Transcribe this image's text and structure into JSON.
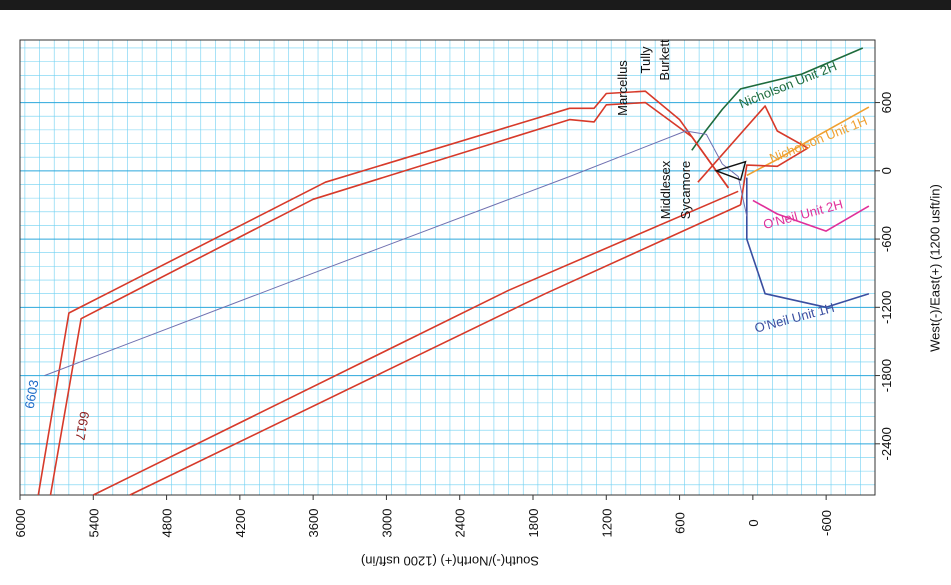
{
  "chart_data": {
    "type": "line",
    "title": "",
    "xlabel": "South(-)/North(+) (1200 usft/in)",
    "ylabel": "West(-)/East(+) (1200 usft/in)",
    "x_reversed": true,
    "xlim": [
      6000,
      -1000
    ],
    "ylim": [
      -2850,
      1150
    ],
    "x_ticks": [
      6000,
      5400,
      4800,
      4200,
      3600,
      3000,
      2400,
      1800,
      1200,
      600,
      0,
      -600
    ],
    "y_ticks": [
      600,
      0,
      -600,
      -1200,
      -1800,
      -2400
    ],
    "grid": true,
    "series": [
      {
        "name": "Nicholson Unit 2H",
        "color": "#1e6b3c",
        "points": [
          [
            500,
            180
          ],
          [
            380,
            360
          ],
          [
            250,
            540
          ],
          [
            100,
            720
          ],
          [
            -400,
            850
          ],
          [
            -900,
            1080
          ]
        ]
      },
      {
        "name": "Nicholson Unit 1H",
        "color": "#f0a030",
        "points": [
          [
            50,
            -40
          ],
          [
            -200,
            100
          ],
          [
            -450,
            260
          ],
          [
            -950,
            560
          ]
        ]
      },
      {
        "name": "O'Neil Unit 2H",
        "color": "#e0309a",
        "points": [
          [
            0,
            -260
          ],
          [
            -200,
            -380
          ],
          [
            -600,
            -530
          ],
          [
            -950,
            -310
          ]
        ]
      },
      {
        "name": "O'Neil Unit 1H",
        "color": "#3a4ea0",
        "points": [
          [
            50,
            -60
          ],
          [
            50,
            -600
          ],
          [
            -100,
            -1080
          ],
          [
            -600,
            -1200
          ],
          [
            -950,
            -1080
          ]
        ]
      },
      {
        "name": "6603",
        "color": "#d73a2a",
        "points": [
          [
            5850,
            -2850
          ],
          [
            5600,
            -1250
          ],
          [
            3500,
            -100
          ],
          [
            1500,
            550
          ],
          [
            1300,
            550
          ],
          [
            1200,
            680
          ],
          [
            880,
            700
          ],
          [
            600,
            450
          ],
          [
            200,
            -150
          ]
        ]
      },
      {
        "name": "6617",
        "color": "#d73a2a",
        "points": [
          [
            5750,
            -2850
          ],
          [
            5500,
            -1300
          ],
          [
            3600,
            -250
          ],
          [
            1500,
            450
          ],
          [
            1300,
            430
          ],
          [
            1200,
            580
          ],
          [
            880,
            600
          ],
          [
            500,
            300
          ],
          [
            200,
            -150
          ]
        ]
      },
      {
        "name": "",
        "color": "#d73a2a",
        "points": [
          [
            5400,
            -2850
          ],
          [
            2000,
            -1050
          ],
          [
            120,
            -180
          ]
        ]
      },
      {
        "name": "",
        "color": "#d73a2a",
        "points": [
          [
            5100,
            -2850
          ],
          [
            1700,
            -1080
          ],
          [
            100,
            -300
          ]
        ]
      },
      {
        "name": "",
        "color": "#d73a2a",
        "points": [
          [
            100,
            -300
          ],
          [
            50,
            50
          ],
          [
            -200,
            40
          ],
          [
            -450,
            200
          ],
          [
            -200,
            350
          ],
          [
            -100,
            570
          ],
          [
            450,
            -100
          ]
        ]
      },
      {
        "name": "",
        "color": "#7070b0",
        "points": [
          [
            5800,
            -1800
          ],
          [
            3600,
            -900
          ],
          [
            1500,
            -50
          ],
          [
            550,
            350
          ],
          [
            380,
            320
          ],
          [
            250,
            60
          ],
          [
            120,
            -50
          ],
          [
            50,
            -400
          ]
        ]
      }
    ],
    "formation_labels": [
      "Marcellus",
      "Tully",
      "Burkett",
      "Middlesex",
      "Sycamore"
    ],
    "well_labels": [
      "6603",
      "6617"
    ]
  }
}
